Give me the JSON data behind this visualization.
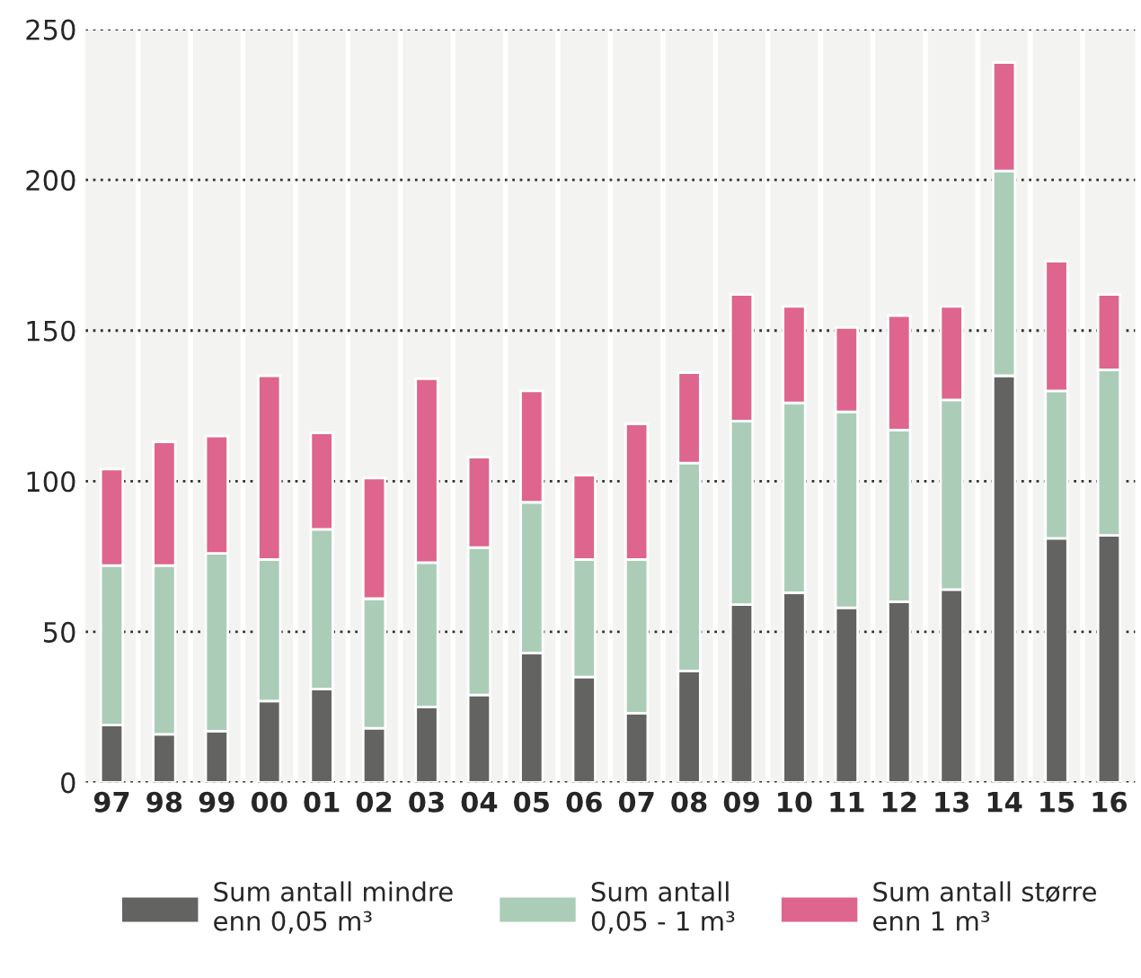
{
  "chart_data": {
    "type": "bar",
    "stacked": true,
    "categories": [
      "97",
      "98",
      "99",
      "00",
      "01",
      "02",
      "03",
      "04",
      "05",
      "06",
      "07",
      "08",
      "09",
      "10",
      "11",
      "12",
      "13",
      "14",
      "15",
      "16"
    ],
    "series": [
      {
        "name": "Sum antall mindre\nenn 0,05 m³",
        "color": "#636362",
        "values": [
          19,
          16,
          17,
          27,
          31,
          18,
          25,
          29,
          43,
          35,
          23,
          37,
          59,
          63,
          58,
          60,
          64,
          135,
          81,
          82
        ]
      },
      {
        "name": "Sum antall\n0,05 - 1 m³",
        "color": "#abcdb8",
        "values": [
          53,
          56,
          59,
          47,
          53,
          43,
          48,
          49,
          50,
          39,
          51,
          69,
          61,
          63,
          65,
          57,
          63,
          68,
          49,
          55
        ]
      },
      {
        "name": "Sum antall større\nenn 1 m³",
        "color": "#de658e",
        "values": [
          32,
          41,
          39,
          61,
          32,
          40,
          61,
          30,
          37,
          28,
          45,
          30,
          42,
          32,
          28,
          38,
          31,
          36,
          43,
          25
        ]
      }
    ],
    "ylim": [
      0,
      250
    ],
    "yticks": [
      0,
      50,
      100,
      150,
      200,
      250
    ],
    "grid": "y",
    "legend": "bottom"
  }
}
